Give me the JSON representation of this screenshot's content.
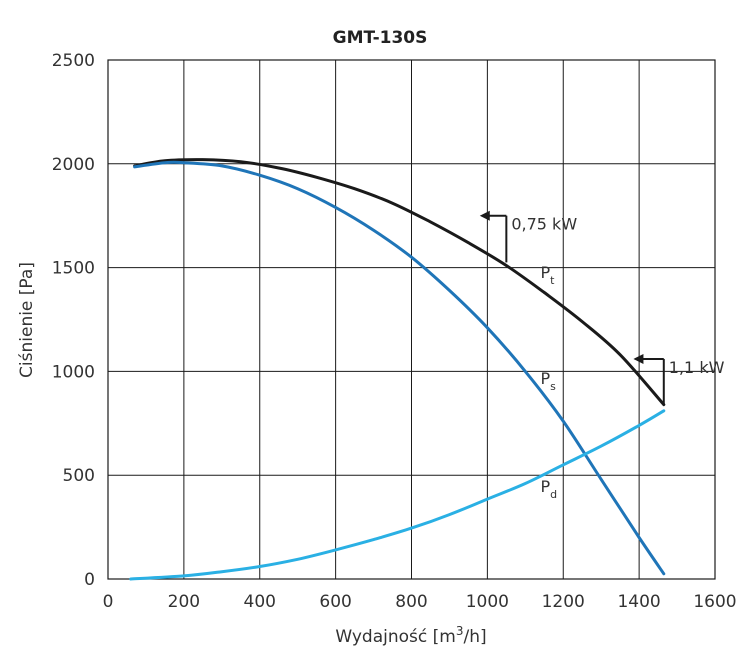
{
  "chart_data": {
    "type": "line",
    "title": "GMT-130S",
    "xlabel": "Wydajność [m³/h]",
    "xlabel_base": "Wydajność [m",
    "xlabel_sup": "3",
    "xlabel_tail": "/h]",
    "ylabel": "Ciśnienie [Pa]",
    "xlim": [
      0,
      1600
    ],
    "ylim": [
      0,
      2500
    ],
    "xticks": [
      0,
      200,
      400,
      600,
      800,
      1000,
      1200,
      1400,
      1600
    ],
    "yticks": [
      0,
      500,
      1000,
      1500,
      2000,
      2500
    ],
    "xtick_labels": [
      "0",
      "200",
      "400",
      "600",
      "800",
      "1000",
      "1200",
      "1400",
      "1600"
    ],
    "ytick_labels": [
      "0",
      "500",
      "1000",
      "1500",
      "2000",
      "2500"
    ],
    "grid": true,
    "series": [
      {
        "name": "Pt",
        "label_base": "P",
        "label_sub": "t",
        "color": "#1a1a1a",
        "label_at": [
          1140,
          1450
        ],
        "x": [
          70,
          150,
          250,
          350,
          450,
          550,
          650,
          750,
          850,
          950,
          1050,
          1150,
          1250,
          1350,
          1465
        ],
        "y": [
          1990,
          2015,
          2020,
          2010,
          1980,
          1935,
          1880,
          1810,
          1720,
          1620,
          1510,
          1380,
          1240,
          1080,
          840
        ]
      },
      {
        "name": "Ps",
        "label_base": "P",
        "label_sub": "s",
        "color": "#1f75b8",
        "label_at": [
          1140,
          940
        ],
        "x": [
          70,
          150,
          200,
          300,
          400,
          500,
          600,
          700,
          800,
          900,
          1000,
          1100,
          1200,
          1300,
          1400,
          1465
        ],
        "y": [
          1985,
          2005,
          2005,
          1990,
          1945,
          1880,
          1790,
          1680,
          1550,
          1390,
          1210,
          1000,
          760,
          480,
          200,
          25
        ]
      },
      {
        "name": "Pd",
        "label_base": "P",
        "label_sub": "d",
        "color": "#2ab0e4",
        "label_at": [
          1140,
          420
        ],
        "x": [
          60,
          200,
          300,
          400,
          500,
          600,
          700,
          800,
          900,
          1000,
          1100,
          1200,
          1300,
          1400,
          1465
        ],
        "y": [
          0,
          15,
          35,
          60,
          95,
          140,
          190,
          245,
          310,
          385,
          460,
          550,
          640,
          740,
          810
        ]
      }
    ],
    "annotations": [
      {
        "text": "0,75 kW",
        "x": 1050,
        "y": 1750,
        "arrow_from": [
          1050,
          1525
        ],
        "arrow_to": [
          980,
          1750
        ]
      },
      {
        "text": "1,1 kW",
        "x": 1465,
        "y": 1060,
        "arrow_from": [
          1465,
          840
        ],
        "arrow_to": [
          1385,
          1060
        ]
      }
    ]
  }
}
